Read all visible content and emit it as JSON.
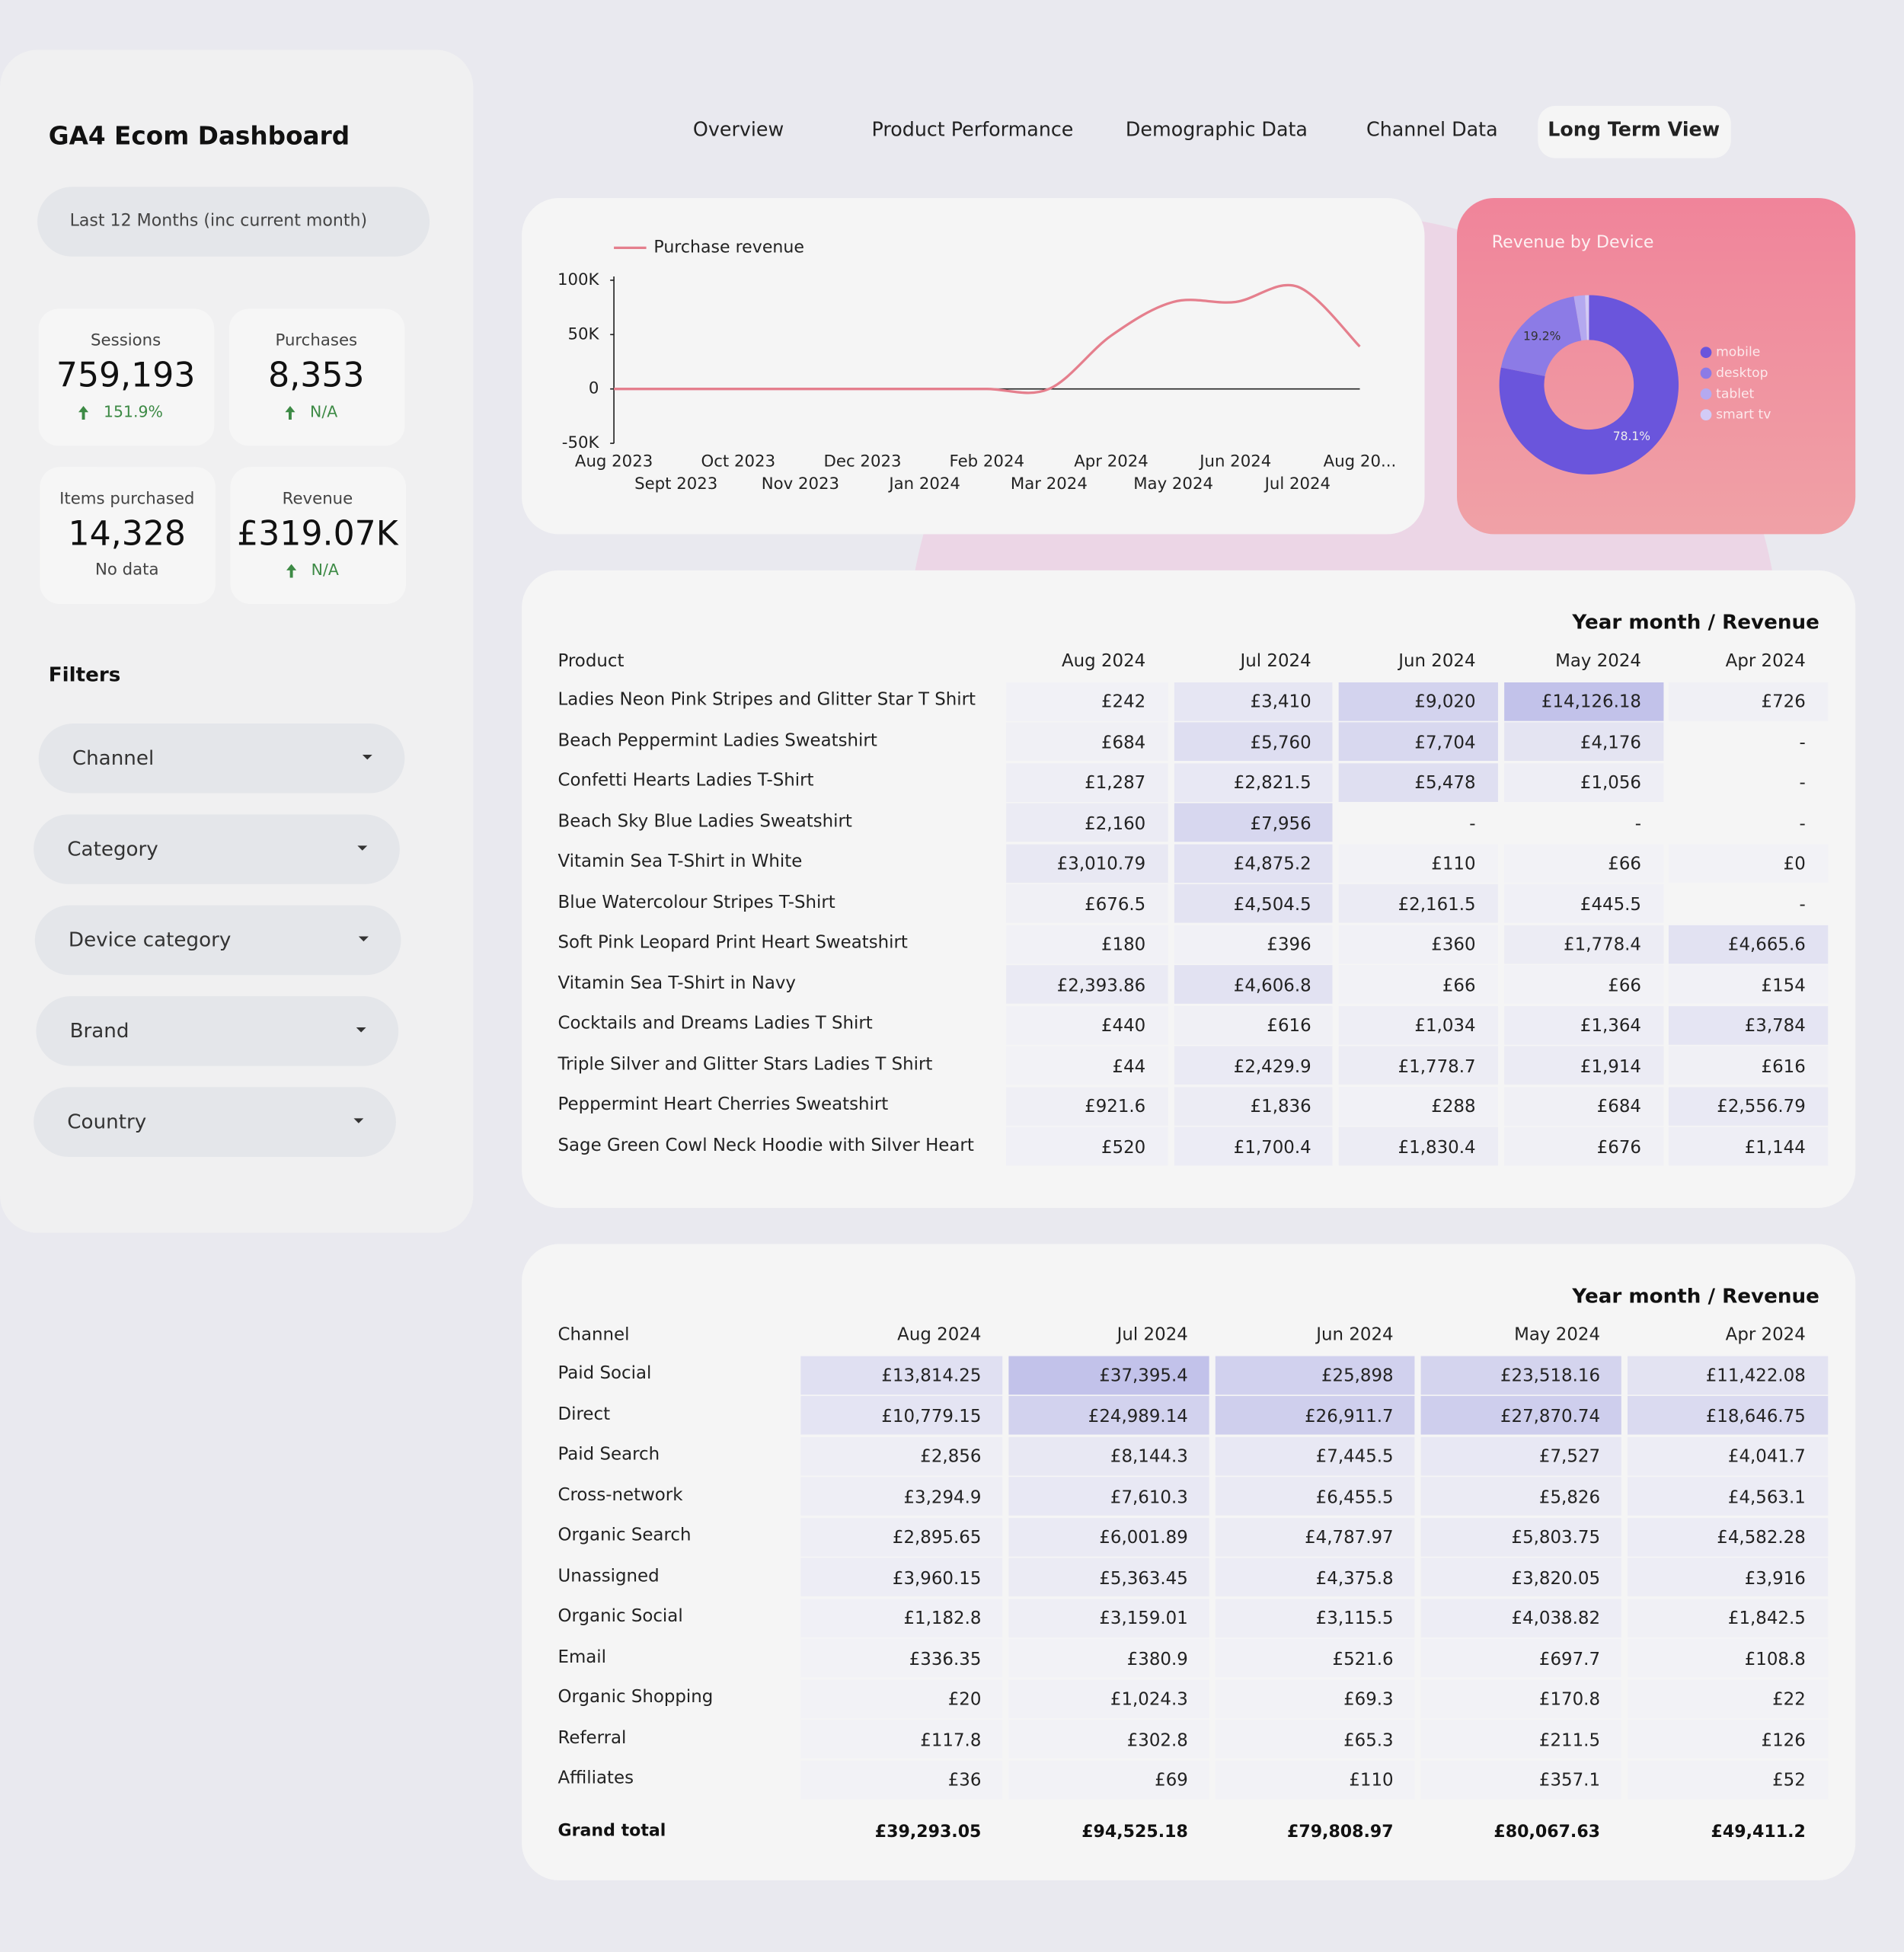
{
  "header": {
    "title": "GA4 Ecom Dashboard",
    "date_range": "Last 12 Months (inc current month)"
  },
  "tabs": [
    "Overview",
    "Product Performance",
    "Demographic Data",
    "Channel Data",
    "Long Term View"
  ],
  "active_tab": 4,
  "kpis": [
    {
      "label": "Sessions",
      "value": "759,193",
      "delta": "151.9%"
    },
    {
      "label": "Purchases",
      "value": "8,353",
      "delta": "N/A"
    },
    {
      "label": "Items purchased",
      "value": "14,328",
      "note": "No data"
    },
    {
      "label": "Revenue",
      "value": "£319.07K",
      "delta": "N/A"
    }
  ],
  "filters_title": "Filters",
  "filters": [
    "Channel",
    "Category",
    "Device category",
    "Brand",
    "Country"
  ],
  "chart_data": [
    {
      "type": "line",
      "categories": [
        "Aug 2023",
        "Sept 2023",
        "Oct 2023",
        "Nov 2023",
        "Dec 2023",
        "Jan 2024",
        "Feb 2024",
        "Mar 2024",
        "Apr 2024",
        "May 2024",
        "Jun 2024",
        "Jul 2024",
        "Aug 20..."
      ],
      "series": [
        {
          "name": "Purchase revenue",
          "color": "#e57f8d",
          "values": [
            0,
            0,
            0,
            0,
            0,
            0,
            0,
            0,
            49000,
            80000,
            80000,
            94000,
            39000
          ]
        }
      ],
      "ylim": [
        -50000,
        100000
      ],
      "yticks": [
        {
          "value": -50000,
          "label": "-50K"
        },
        0,
        {
          "value": 50000,
          "label": "50K"
        },
        {
          "value": 100000,
          "label": "100K"
        }
      ],
      "grid": false
    },
    {
      "type": "pie",
      "title": "Revenue by Device",
      "categories": [
        "mobile",
        "desktop",
        "tablet",
        "smart tv"
      ],
      "values": [
        78.1,
        19.2,
        2.0,
        0.7
      ],
      "value_labels": [
        "78.1%",
        "19.2%",
        null,
        null
      ],
      "colors": [
        "#6a55dc",
        "#8c7be6",
        "#b4a9f0",
        "#d2cbf6"
      ],
      "donut": true
    }
  ],
  "product_table": {
    "title": "Year month / Revenue",
    "columns": [
      "Product",
      "Aug 2024",
      "Jul 2024",
      "Jun 2024",
      "May 2024",
      "Apr 2024"
    ],
    "rows": [
      [
        "Ladies Neon Pink Stripes and Glitter Star T Shirt",
        "£242",
        "£3,410",
        "£9,020",
        "£14,126.18",
        "£726"
      ],
      [
        "Beach Peppermint Ladies Sweatshirt",
        "£684",
        "£5,760",
        "£7,704",
        "£4,176",
        "-"
      ],
      [
        "Confetti Hearts Ladies T-Shirt",
        "£1,287",
        "£2,821.5",
        "£5,478",
        "£1,056",
        "-"
      ],
      [
        "Beach Sky Blue Ladies Sweatshirt",
        "£2,160",
        "£7,956",
        "-",
        "-",
        "-"
      ],
      [
        "Vitamin Sea T-Shirt in White",
        "£3,010.79",
        "£4,875.2",
        "£110",
        "£66",
        "£0"
      ],
      [
        "Blue Watercolour Stripes T-Shirt",
        "£676.5",
        "£4,504.5",
        "£2,161.5",
        "£445.5",
        "-"
      ],
      [
        "Soft Pink Leopard Print Heart Sweatshirt",
        "£180",
        "£396",
        "£360",
        "£1,778.4",
        "£4,665.6"
      ],
      [
        "Vitamin Sea T-Shirt in Navy",
        "£2,393.86",
        "£4,606.8",
        "£66",
        "£66",
        "£154"
      ],
      [
        "Cocktails and Dreams Ladies T Shirt",
        "£440",
        "£616",
        "£1,034",
        "£1,364",
        "£3,784"
      ],
      [
        "Triple Silver and Glitter Stars Ladies T Shirt",
        "£44",
        "£2,429.9",
        "£1,778.7",
        "£1,914",
        "£616"
      ],
      [
        "Peppermint Heart Cherries Sweatshirt",
        "£921.6",
        "£1,836",
        "£288",
        "£684",
        "£2,556.79"
      ],
      [
        "Sage Green Cowl Neck Hoodie with Silver Heart",
        "£520",
        "£1,700.4",
        "£1,830.4",
        "£676",
        "£1,144"
      ]
    ]
  },
  "channel_table": {
    "title": "Year month / Revenue",
    "columns": [
      "Channel",
      "Aug 2024",
      "Jul 2024",
      "Jun 2024",
      "May 2024",
      "Apr 2024"
    ],
    "rows": [
      [
        "Paid Social",
        "£13,814.25",
        "£37,395.4",
        "£25,898",
        "£23,518.16",
        "£11,422.08"
      ],
      [
        "Direct",
        "£10,779.15",
        "£24,989.14",
        "£26,911.7",
        "£27,870.74",
        "£18,646.75"
      ],
      [
        "Paid Search",
        "£2,856",
        "£8,144.3",
        "£7,445.5",
        "£7,527",
        "£4,041.7"
      ],
      [
        "Cross-network",
        "£3,294.9",
        "£7,610.3",
        "£6,455.5",
        "£5,826",
        "£4,563.1"
      ],
      [
        "Organic Search",
        "£2,895.65",
        "£6,001.89",
        "£4,787.97",
        "£5,803.75",
        "£4,582.28"
      ],
      [
        "Unassigned",
        "£3,960.15",
        "£5,363.45",
        "£4,375.8",
        "£3,820.05",
        "£3,916"
      ],
      [
        "Organic Social",
        "£1,182.8",
        "£3,159.01",
        "£3,115.5",
        "£4,038.82",
        "£1,842.5"
      ],
      [
        "Email",
        "£336.35",
        "£380.9",
        "£521.6",
        "£697.7",
        "£108.8"
      ],
      [
        "Organic Shopping",
        "£20",
        "£1,024.3",
        "£69.3",
        "£170.8",
        "£22"
      ],
      [
        "Referral",
        "£117.8",
        "£302.8",
        "£65.3",
        "£211.5",
        "£126"
      ],
      [
        "Affiliates",
        "£36",
        "£69",
        "£110",
        "£357.1",
        "£52"
      ]
    ],
    "total": [
      "Grand total",
      "£39,293.05",
      "£94,525.18",
      "£79,808.97",
      "£80,067.63",
      "£49,411.2"
    ]
  }
}
